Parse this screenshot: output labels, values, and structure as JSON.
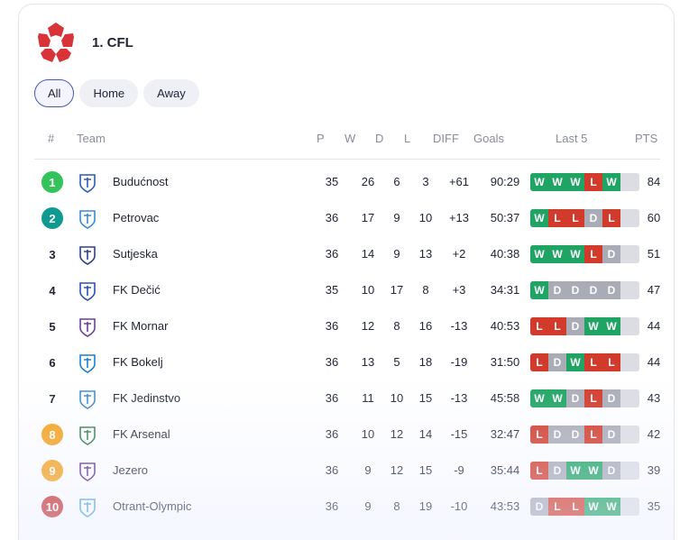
{
  "league": {
    "name": "1. CFL"
  },
  "filters": [
    {
      "label": "All",
      "active": true
    },
    {
      "label": "Home",
      "active": false
    },
    {
      "label": "Away",
      "active": false
    }
  ],
  "headers": {
    "rank": "#",
    "team": "Team",
    "p": "P",
    "w": "W",
    "d": "D",
    "l": "L",
    "diff": "DIFF",
    "goals": "Goals",
    "last5": "Last 5",
    "pts": "PTS"
  },
  "colors": {
    "rank_green": "#32c45a",
    "rank_teal": "#0e9a8e",
    "rank_orange": "#f6a11a",
    "rank_red": "#c52a2a",
    "win": "#1fa463",
    "loss": "#d23a2b",
    "draw": "#a9acb6"
  },
  "rows": [
    {
      "rank": "1",
      "rank_style": "green",
      "crest": "budcnost-crest-icon",
      "team": "Budućnost",
      "p": "35",
      "w": "26",
      "d": "6",
      "l": "3",
      "diff": "+61",
      "goals": "90:29",
      "last5": [
        "W",
        "W",
        "W",
        "L",
        "W"
      ],
      "pts": "84"
    },
    {
      "rank": "2",
      "rank_style": "teal",
      "crest": "petrovac-crest-icon",
      "team": "Petrovac",
      "p": "36",
      "w": "17",
      "d": "9",
      "l": "10",
      "diff": "+13",
      "goals": "50:37",
      "last5": [
        "W",
        "L",
        "L",
        "D",
        "L"
      ],
      "pts": "60"
    },
    {
      "rank": "3",
      "rank_style": "plain",
      "crest": "sutjeska-crest-icon",
      "team": "Sutjeska",
      "p": "36",
      "w": "14",
      "d": "9",
      "l": "13",
      "diff": "+2",
      "goals": "40:38",
      "last5": [
        "W",
        "W",
        "W",
        "L",
        "D"
      ],
      "pts": "51"
    },
    {
      "rank": "4",
      "rank_style": "plain",
      "crest": "decic-crest-icon",
      "team": "FK Dečić",
      "p": "35",
      "w": "10",
      "d": "17",
      "l": "8",
      "diff": "+3",
      "goals": "34:31",
      "last5": [
        "W",
        "D",
        "D",
        "D",
        "D"
      ],
      "pts": "47"
    },
    {
      "rank": "5",
      "rank_style": "plain",
      "crest": "mornar-crest-icon",
      "team": "FK Mornar",
      "p": "36",
      "w": "12",
      "d": "8",
      "l": "16",
      "diff": "-13",
      "goals": "40:53",
      "last5": [
        "L",
        "L",
        "D",
        "W",
        "W"
      ],
      "pts": "44"
    },
    {
      "rank": "6",
      "rank_style": "plain",
      "crest": "bokelj-crest-icon",
      "team": "FK Bokelj",
      "p": "36",
      "w": "13",
      "d": "5",
      "l": "18",
      "diff": "-19",
      "goals": "31:50",
      "last5": [
        "L",
        "D",
        "W",
        "L",
        "L"
      ],
      "pts": "44"
    },
    {
      "rank": "7",
      "rank_style": "plain",
      "crest": "jedinstvo-crest-icon",
      "team": "FK Jedinstvo",
      "p": "36",
      "w": "11",
      "d": "10",
      "l": "15",
      "diff": "-13",
      "goals": "45:58",
      "last5": [
        "W",
        "W",
        "D",
        "L",
        "D"
      ],
      "pts": "43"
    },
    {
      "rank": "8",
      "rank_style": "orange",
      "crest": "arsenal-crest-icon",
      "team": "FK Arsenal",
      "p": "36",
      "w": "10",
      "d": "12",
      "l": "14",
      "diff": "-15",
      "goals": "32:47",
      "last5": [
        "L",
        "D",
        "D",
        "L",
        "D"
      ],
      "pts": "42"
    },
    {
      "rank": "9",
      "rank_style": "orange",
      "crest": "jezero-crest-icon",
      "team": "Jezero",
      "p": "36",
      "w": "9",
      "d": "12",
      "l": "15",
      "diff": "-9",
      "goals": "35:44",
      "last5": [
        "L",
        "D",
        "W",
        "W",
        "D"
      ],
      "pts": "39"
    },
    {
      "rank": "10",
      "rank_style": "red",
      "crest": "otrant-crest-icon",
      "team": "Otrant-Olympic",
      "p": "36",
      "w": "9",
      "d": "8",
      "l": "19",
      "diff": "-10",
      "goals": "43:53",
      "last5": [
        "D",
        "L",
        "L",
        "W",
        "W"
      ],
      "pts": "35"
    }
  ]
}
